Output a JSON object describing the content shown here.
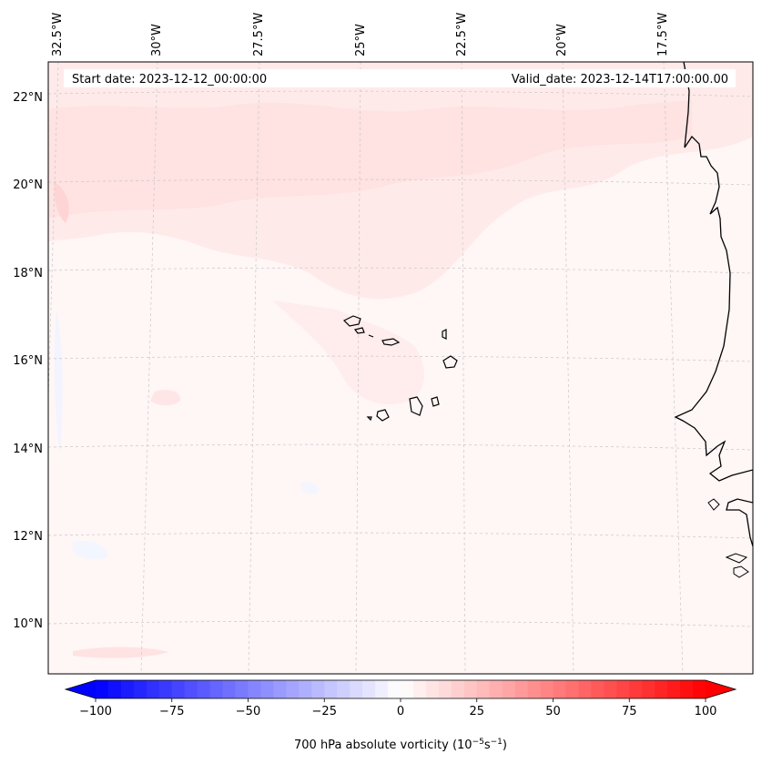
{
  "map": {
    "start_date": "Start date: 2023-12-12_00:00:00",
    "valid_date": "Valid_date: 2023-12-14T17:00:00.00",
    "lon_labels": [
      "32.5°W",
      "30°W",
      "27.5°W",
      "25°W",
      "22.5°W",
      "20°W",
      "17.5°W"
    ],
    "lat_labels": [
      "22°N",
      "20°N",
      "18°N",
      "16°N",
      "14°N",
      "12°N",
      "10°N"
    ],
    "field": "700 hPa absolute vorticity",
    "colormap": "bwr"
  },
  "colorbar": {
    "ticks": [
      "−100",
      "−75",
      "−50",
      "−25",
      "0",
      "25",
      "50",
      "75",
      "100"
    ],
    "label_main": "700 hPa absolute vorticity (10",
    "label_exp1": "−5",
    "label_mid": "s",
    "label_exp2": "−1",
    "label_end": ")",
    "min": -100,
    "max": 100,
    "levels": 48
  },
  "colors": {
    "negative": "#0000ff",
    "positive": "#ff0000",
    "neutral": "#ffffff",
    "coast": "#000000",
    "grid": "#bbbbbb"
  }
}
